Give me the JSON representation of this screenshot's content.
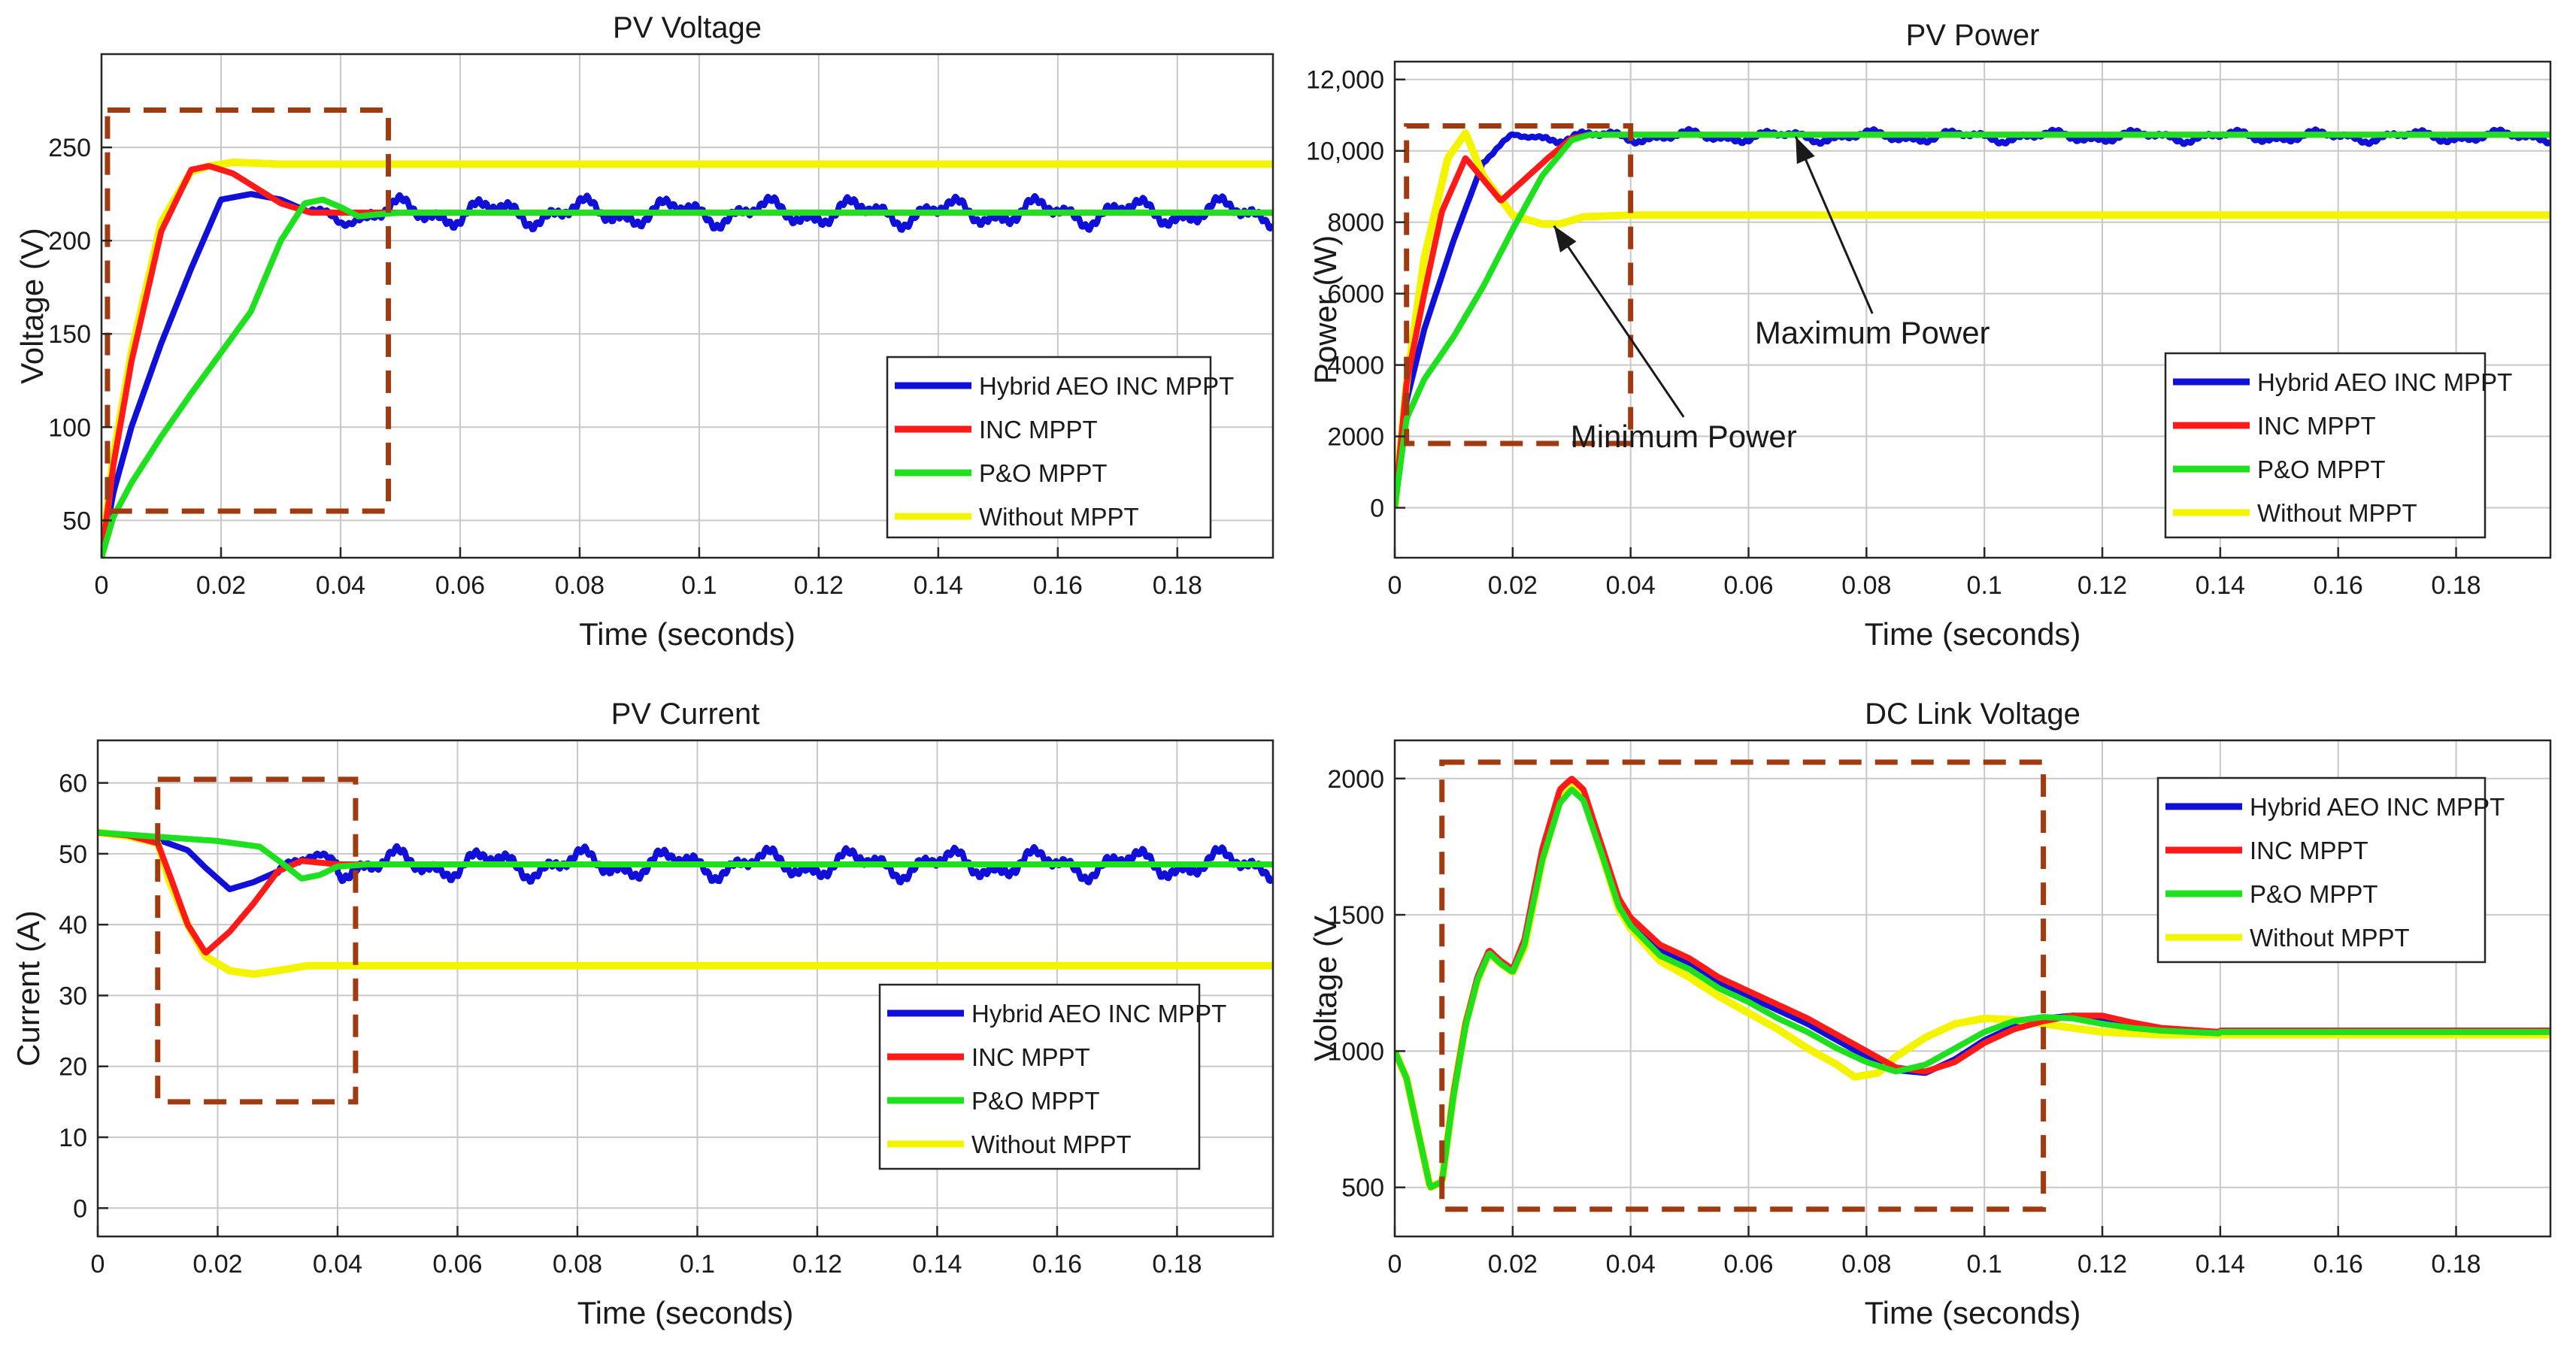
{
  "colors": {
    "hybrid": "#1010d8",
    "inc": "#ff1a1a",
    "po": "#1fe01f",
    "without": "#f4f400",
    "zoom_box": "#a03a10",
    "grid": "#c8c8c8"
  },
  "chart_data": [
    {
      "id": "pv-voltage",
      "type": "line",
      "title": "PV Voltage",
      "xlabel": "Time (seconds)",
      "ylabel": "Voltage (V)",
      "xlim": [
        0,
        0.196
      ],
      "ylim": [
        30,
        300
      ],
      "xticks": [
        0,
        0.02,
        0.04,
        0.06,
        0.08,
        0.1,
        0.12,
        0.14,
        0.16,
        0.18
      ],
      "xtick_labels": [
        "0",
        "0.02",
        "0.04",
        "0.06",
        "0.08",
        "0.1",
        "0.12",
        "0.14",
        "0.16",
        "0.18"
      ],
      "yticks": [
        50,
        100,
        150,
        200,
        250
      ],
      "ytick_labels": [
        "50",
        "100",
        "150",
        "200",
        "250"
      ],
      "grid": true,
      "legend_position": "bottom-right",
      "zoom_box": {
        "x": [
          0.001,
          0.048
        ],
        "y": [
          55,
          270
        ]
      },
      "series": [
        {
          "key": "hybrid",
          "name": "Hybrid AEO INC MPPT",
          "final": 215,
          "amp": 8,
          "x": [
            0,
            0.002,
            0.005,
            0.01,
            0.015,
            0.02,
            0.025,
            0.03,
            0.035,
            0.04,
            0.045
          ],
          "y": [
            30,
            65,
            100,
            145,
            185,
            222,
            225,
            222,
            215,
            212,
            213
          ]
        },
        {
          "key": "inc",
          "name": "INC MPPT",
          "final": 215,
          "amp": 0,
          "x": [
            0,
            0.002,
            0.005,
            0.01,
            0.015,
            0.018,
            0.022,
            0.026,
            0.03,
            0.035,
            0.04,
            0.045
          ],
          "y": [
            30,
            80,
            135,
            205,
            238,
            240,
            236,
            228,
            220,
            215,
            215,
            215
          ]
        },
        {
          "key": "po",
          "name": "P&O MPPT",
          "final": 215,
          "amp": 0,
          "x": [
            0,
            0.002,
            0.005,
            0.01,
            0.015,
            0.02,
            0.025,
            0.03,
            0.034,
            0.037,
            0.04,
            0.043,
            0.046,
            0.05
          ],
          "y": [
            30,
            52,
            70,
            95,
            118,
            140,
            162,
            200,
            220,
            222,
            218,
            213,
            214,
            215
          ]
        },
        {
          "key": "without",
          "name": "Without MPPT",
          "final": 241,
          "amp": 0,
          "x": [
            0,
            0.002,
            0.005,
            0.01,
            0.015,
            0.018,
            0.022,
            0.03
          ],
          "y": [
            30,
            85,
            140,
            210,
            237,
            240,
            242,
            241
          ]
        }
      ]
    },
    {
      "id": "pv-power",
      "type": "line",
      "title": "PV Power",
      "xlabel": "Time (seconds)",
      "ylabel": "Power (W)",
      "xlim": [
        0,
        0.196
      ],
      "ylim": [
        -1400,
        12500
      ],
      "xticks": [
        0,
        0.02,
        0.04,
        0.06,
        0.08,
        0.1,
        0.12,
        0.14,
        0.16,
        0.18
      ],
      "xtick_labels": [
        "0",
        "0.02",
        "0.04",
        "0.06",
        "0.08",
        "0.1",
        "0.12",
        "0.14",
        "0.16",
        "0.18"
      ],
      "yticks": [
        0,
        2000,
        4000,
        6000,
        8000,
        10000,
        12000
      ],
      "ytick_labels": [
        "0",
        "2000",
        "4000",
        "6000",
        "8000",
        "10,000",
        "12,000"
      ],
      "grid": true,
      "legend_position": "bottom-right",
      "zoom_box": {
        "x": [
          0.002,
          0.04
        ],
        "y": [
          1800,
          10700
        ]
      },
      "annotations": [
        {
          "text": "Maximum Power",
          "point": [
            0.068,
            10400
          ],
          "label_at": [
            0.081,
            4600
          ]
        },
        {
          "text": "Minimum Power",
          "point": [
            0.027,
            7900
          ],
          "label_at": [
            0.049,
            1700
          ]
        }
      ],
      "series": [
        {
          "key": "hybrid",
          "name": "Hybrid AEO INC MPPT",
          "final": 10400,
          "amp": 180,
          "x": [
            0,
            0.002,
            0.005,
            0.01,
            0.015,
            0.02,
            0.025
          ],
          "y": [
            0,
            3000,
            5000,
            7500,
            9700,
            10400,
            10400
          ]
        },
        {
          "key": "inc",
          "name": "INC MPPT",
          "final": 10450,
          "amp": 0,
          "x": [
            0,
            0.002,
            0.005,
            0.008,
            0.012,
            0.015,
            0.018,
            0.022,
            0.026,
            0.03,
            0.033
          ],
          "y": [
            0,
            3500,
            6000,
            8300,
            9800,
            9200,
            8600,
            9200,
            9800,
            10350,
            10450
          ]
        },
        {
          "key": "po",
          "name": "P&O MPPT",
          "final": 10450,
          "amp": 0,
          "x": [
            0,
            0.002,
            0.005,
            0.01,
            0.015,
            0.02,
            0.025,
            0.03,
            0.033
          ],
          "y": [
            0,
            2500,
            3600,
            4800,
            6200,
            7800,
            9300,
            10300,
            10450
          ]
        },
        {
          "key": "without",
          "name": "Without MPPT",
          "final": 8200,
          "amp": 0,
          "x": [
            0,
            0.002,
            0.005,
            0.009,
            0.012,
            0.015,
            0.02,
            0.025,
            0.028,
            0.032,
            0.04
          ],
          "y": [
            0,
            3500,
            7000,
            9800,
            10500,
            9300,
            8200,
            7950,
            7950,
            8150,
            8200
          ]
        }
      ]
    },
    {
      "id": "pv-current",
      "type": "line",
      "title": "PV Current",
      "xlabel": "Time (seconds)",
      "ylabel": "Current (A)",
      "xlim": [
        0,
        0.196
      ],
      "ylim": [
        -4,
        66
      ],
      "xticks": [
        0,
        0.02,
        0.04,
        0.06,
        0.08,
        0.1,
        0.12,
        0.14,
        0.16,
        0.18
      ],
      "xtick_labels": [
        "0",
        "0.02",
        "0.04",
        "0.06",
        "0.08",
        "0.1",
        "0.12",
        "0.14",
        "0.16",
        "0.18"
      ],
      "yticks": [
        0,
        10,
        20,
        30,
        40,
        50,
        60
      ],
      "ytick_labels": [
        "0",
        "10",
        "20",
        "30",
        "40",
        "50",
        "60"
      ],
      "grid": true,
      "legend_position": "bottom-right",
      "zoom_box": {
        "x": [
          0.01,
          0.043
        ],
        "y": [
          15,
          60.5
        ]
      },
      "series": [
        {
          "key": "hybrid",
          "name": "Hybrid AEO INC MPPT",
          "final": 48.5,
          "amp": 2.2,
          "x": [
            0,
            0.005,
            0.01,
            0.015,
            0.018,
            0.022,
            0.026,
            0.03,
            0.035,
            0.04
          ],
          "y": [
            53,
            52.6,
            52,
            50.5,
            48,
            45,
            46,
            47.5,
            49,
            49.5
          ]
        },
        {
          "key": "inc",
          "name": "INC MPPT",
          "final": 48.5,
          "amp": 0,
          "x": [
            0,
            0.005,
            0.01,
            0.012,
            0.015,
            0.018,
            0.022,
            0.026,
            0.03,
            0.034,
            0.04
          ],
          "y": [
            53,
            52.6,
            51.5,
            47,
            40,
            36,
            39,
            43,
            47.5,
            49,
            48.5
          ]
        },
        {
          "key": "po",
          "name": "P&O MPPT",
          "final": 48.5,
          "amp": 0,
          "x": [
            0,
            0.005,
            0.01,
            0.02,
            0.027,
            0.031,
            0.034,
            0.037,
            0.04,
            0.045
          ],
          "y": [
            53,
            52.7,
            52.4,
            51.8,
            51,
            48.5,
            46.5,
            47,
            48.2,
            48.5
          ]
        },
        {
          "key": "without",
          "name": "Without MPPT",
          "final": 34.2,
          "amp": 0,
          "x": [
            0,
            0.005,
            0.01,
            0.012,
            0.015,
            0.018,
            0.022,
            0.026,
            0.03,
            0.035,
            0.04
          ],
          "y": [
            53,
            52.5,
            51.5,
            46,
            40,
            35.5,
            33.5,
            33,
            33.5,
            34.2,
            34.2
          ]
        }
      ]
    },
    {
      "id": "dc-link-voltage",
      "type": "line",
      "title": "DC Link Voltage",
      "xlabel": "Time (seconds)",
      "ylabel": "Voltage (V",
      "xlim": [
        0,
        0.196
      ],
      "ylim": [
        320,
        2140
      ],
      "xticks": [
        0,
        0.02,
        0.04,
        0.06,
        0.08,
        0.1,
        0.12,
        0.14,
        0.16,
        0.18
      ],
      "xtick_labels": [
        "0",
        "0.02",
        "0.04",
        "0.06",
        "0.08",
        "0.1",
        "0.12",
        "0.14",
        "0.16",
        "0.18"
      ],
      "yticks": [
        500,
        1000,
        1500,
        2000
      ],
      "ytick_labels": [
        "500",
        "1000",
        "1500",
        "2000"
      ],
      "grid": true,
      "legend_position": "top-right",
      "zoom_box": {
        "x": [
          0.008,
          0.11
        ],
        "y": [
          420,
          2060
        ]
      },
      "series": [
        {
          "key": "hybrid",
          "name": "Hybrid AEO INC MPPT",
          "final": 1075,
          "amp": 0,
          "x": [
            0,
            0.002,
            0.004,
            0.006,
            0.008,
            0.01,
            0.012,
            0.014,
            0.016,
            0.018,
            0.02,
            0.022,
            0.025,
            0.028,
            0.03,
            0.032,
            0.035,
            0.038,
            0.04,
            0.045,
            0.05,
            0.055,
            0.06,
            0.065,
            0.07,
            0.075,
            0.08,
            0.085,
            0.09,
            0.095,
            0.1,
            0.105,
            0.11,
            0.115,
            0.12,
            0.125,
            0.13,
            0.14
          ],
          "y": [
            1000,
            900,
            700,
            500,
            520,
            850,
            1100,
            1270,
            1370,
            1330,
            1300,
            1400,
            1720,
            1940,
            1990,
            1950,
            1750,
            1550,
            1480,
            1370,
            1320,
            1250,
            1200,
            1150,
            1100,
            1040,
            980,
            930,
            920,
            970,
            1040,
            1090,
            1120,
            1130,
            1120,
            1100,
            1080,
            1070
          ]
        },
        {
          "key": "inc",
          "name": "INC MPPT",
          "final": 1075,
          "amp": 0,
          "x": [
            0,
            0.002,
            0.004,
            0.006,
            0.008,
            0.01,
            0.012,
            0.014,
            0.016,
            0.018,
            0.02,
            0.022,
            0.025,
            0.028,
            0.03,
            0.032,
            0.035,
            0.038,
            0.04,
            0.045,
            0.05,
            0.055,
            0.06,
            0.065,
            0.07,
            0.075,
            0.08,
            0.085,
            0.09,
            0.095,
            0.1,
            0.105,
            0.11,
            0.115,
            0.12,
            0.125,
            0.13,
            0.14
          ],
          "y": [
            1000,
            900,
            700,
            500,
            520,
            850,
            1100,
            1270,
            1370,
            1330,
            1300,
            1410,
            1740,
            1960,
            2000,
            1960,
            1760,
            1560,
            1490,
            1390,
            1340,
            1270,
            1220,
            1170,
            1120,
            1060,
            1000,
            940,
            925,
            960,
            1030,
            1080,
            1110,
            1130,
            1130,
            1105,
            1085,
            1070
          ]
        },
        {
          "key": "po",
          "name": "P&O MPPT",
          "final": 1070,
          "amp": 0,
          "x": [
            0,
            0.002,
            0.004,
            0.006,
            0.008,
            0.01,
            0.012,
            0.014,
            0.016,
            0.018,
            0.02,
            0.022,
            0.025,
            0.028,
            0.03,
            0.032,
            0.035,
            0.038,
            0.04,
            0.045,
            0.05,
            0.055,
            0.06,
            0.065,
            0.07,
            0.075,
            0.08,
            0.085,
            0.09,
            0.095,
            0.1,
            0.105,
            0.11,
            0.115,
            0.12,
            0.125,
            0.13,
            0.14
          ],
          "y": [
            1000,
            900,
            700,
            500,
            520,
            840,
            1090,
            1260,
            1360,
            1320,
            1290,
            1390,
            1700,
            1910,
            1960,
            1920,
            1730,
            1530,
            1460,
            1350,
            1300,
            1230,
            1180,
            1120,
            1070,
            1010,
            960,
            925,
            950,
            1010,
            1070,
            1110,
            1125,
            1120,
            1100,
            1085,
            1075,
            1065
          ]
        },
        {
          "key": "without",
          "name": "Without MPPT",
          "final": 1060,
          "amp": 0,
          "x": [
            0,
            0.002,
            0.004,
            0.006,
            0.008,
            0.01,
            0.012,
            0.014,
            0.016,
            0.018,
            0.02,
            0.022,
            0.025,
            0.028,
            0.03,
            0.032,
            0.035,
            0.038,
            0.04,
            0.045,
            0.05,
            0.055,
            0.06,
            0.065,
            0.07,
            0.075,
            0.078,
            0.082,
            0.085,
            0.09,
            0.095,
            0.1,
            0.105,
            0.11,
            0.115,
            0.12,
            0.13,
            0.14
          ],
          "y": [
            1000,
            900,
            700,
            500,
            520,
            850,
            1100,
            1260,
            1360,
            1320,
            1290,
            1380,
            1700,
            1920,
            1970,
            1930,
            1730,
            1520,
            1450,
            1330,
            1270,
            1200,
            1140,
            1080,
            1010,
            950,
            905,
            920,
            980,
            1050,
            1100,
            1120,
            1115,
            1100,
            1085,
            1070,
            1060,
            1060
          ]
        }
      ]
    }
  ]
}
